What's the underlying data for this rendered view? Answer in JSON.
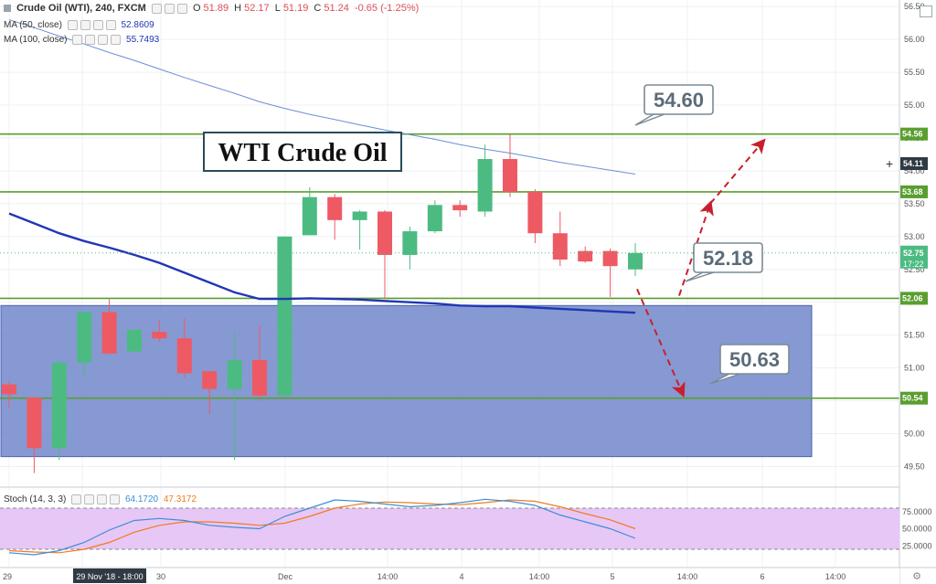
{
  "header": {
    "icon": "square-icon",
    "symbol": "Crude Oil (WTI), 240, FXCM",
    "open_label": "O",
    "open": "51.89",
    "high_label": "H",
    "high": "52.17",
    "low_label": "L",
    "low": "51.19",
    "close_label": "C",
    "close": "51.24",
    "change": "-0.65 (-1.25%)"
  },
  "indicators": {
    "ma50": {
      "label": "MA (50, close)",
      "value": "52.8609",
      "color": "#2136b5"
    },
    "ma100": {
      "label": "MA (100, close)",
      "value": "55.7493",
      "color": "#6b8fd6"
    }
  },
  "stoch_header": {
    "label": "Stoch (14, 3, 3)",
    "k": "64.1720",
    "d": "47.3172",
    "k_color": "#3b8fd6",
    "d_color": "#f07b1f"
  },
  "colors": {
    "up": "#4cbb82",
    "down": "#ee5a63",
    "level": "#5a9e2f",
    "zone": "#6c82c8",
    "arrow": "#c8202b",
    "stoch_bg": "#e7c7f5"
  },
  "chart_data": {
    "type": "candlestick",
    "title": "WTI Crude Oil",
    "ylim": [
      49.2,
      56.6
    ],
    "y_ticks": [
      "56.50",
      "56.00",
      "55.50",
      "55.00",
      "54.50",
      "54.00",
      "53.50",
      "53.00",
      "52.50",
      "52.00",
      "51.50",
      "51.00",
      "50.50",
      "50.00",
      "49.50"
    ],
    "x_ticks": [
      "29",
      "29 Nov '18 - 18:00",
      "30",
      "Dec",
      "14:00",
      "4",
      "14:00",
      "5",
      "14:00",
      "6",
      "14:00"
    ],
    "candles": [
      {
        "o": 50.75,
        "h": 50.8,
        "l": 50.4,
        "c": 50.6
      },
      {
        "o": 50.55,
        "h": 50.55,
        "l": 49.4,
        "c": 49.78
      },
      {
        "o": 49.78,
        "h": 51.1,
        "l": 49.6,
        "c": 51.08
      },
      {
        "o": 51.08,
        "h": 51.85,
        "l": 50.85,
        "c": 51.85
      },
      {
        "o": 51.85,
        "h": 52.05,
        "l": 51.2,
        "c": 51.22
      },
      {
        "o": 51.25,
        "h": 51.6,
        "l": 51.25,
        "c": 51.58
      },
      {
        "o": 51.55,
        "h": 51.72,
        "l": 51.4,
        "c": 51.45
      },
      {
        "o": 51.45,
        "h": 51.75,
        "l": 50.85,
        "c": 50.92
      },
      {
        "o": 50.95,
        "h": 50.95,
        "l": 50.3,
        "c": 50.68
      },
      {
        "o": 50.68,
        "h": 51.55,
        "l": 49.6,
        "c": 51.12
      },
      {
        "o": 51.12,
        "h": 51.65,
        "l": 50.5,
        "c": 50.58
      },
      {
        "o": 50.58,
        "h": 53.0,
        "l": 50.55,
        "c": 53.0
      },
      {
        "o": 53.02,
        "h": 53.75,
        "l": 53.02,
        "c": 53.6
      },
      {
        "o": 53.6,
        "h": 53.65,
        "l": 52.95,
        "c": 53.25
      },
      {
        "o": 53.25,
        "h": 53.4,
        "l": 52.8,
        "c": 53.38
      },
      {
        "o": 53.38,
        "h": 53.4,
        "l": 52.05,
        "c": 52.72
      },
      {
        "o": 52.72,
        "h": 53.15,
        "l": 52.5,
        "c": 53.08
      },
      {
        "o": 53.08,
        "h": 53.55,
        "l": 53.05,
        "c": 53.48
      },
      {
        "o": 53.48,
        "h": 53.55,
        "l": 53.3,
        "c": 53.4
      },
      {
        "o": 53.38,
        "h": 54.4,
        "l": 53.3,
        "c": 54.18
      },
      {
        "o": 54.18,
        "h": 54.55,
        "l": 53.6,
        "c": 53.68
      },
      {
        "o": 53.68,
        "h": 53.72,
        "l": 52.9,
        "c": 53.05
      },
      {
        "o": 53.05,
        "h": 53.38,
        "l": 52.55,
        "c": 52.65
      },
      {
        "o": 52.78,
        "h": 52.85,
        "l": 52.6,
        "c": 52.62
      },
      {
        "o": 52.78,
        "h": 52.82,
        "l": 52.08,
        "c": 52.55
      },
      {
        "o": 52.5,
        "h": 52.9,
        "l": 52.4,
        "c": 52.75
      }
    ],
    "ma50": [
      53.35,
      53.2,
      53.05,
      52.93,
      52.83,
      52.72,
      52.6,
      52.45,
      52.3,
      52.15,
      52.05,
      52.05,
      52.06,
      52.05,
      52.04,
      52.02,
      52.0,
      51.98,
      51.95,
      51.94,
      51.94,
      51.92,
      51.9,
      51.88,
      51.86,
      51.84
    ],
    "ma100": [
      56.3,
      56.18,
      56.05,
      55.93,
      55.8,
      55.68,
      55.55,
      55.42,
      55.3,
      55.18,
      55.05,
      54.95,
      54.86,
      54.78,
      54.7,
      54.62,
      54.55,
      54.48,
      54.4,
      54.33,
      54.27,
      54.2,
      54.13,
      54.07,
      54.01,
      53.95
    ],
    "levels": [
      {
        "value": 54.56,
        "label": "54.56"
      },
      {
        "value": 53.68,
        "label": "53.68"
      },
      {
        "value": 52.06,
        "label": "52.06"
      },
      {
        "value": 50.54,
        "label": "50.54"
      }
    ],
    "current_price": {
      "value": 52.75,
      "label": "52.75",
      "timer": "17:22"
    },
    "crosshair_price": {
      "value": 54.11,
      "label": "54.11"
    },
    "callouts": [
      "54.60",
      "52.18",
      "50.63"
    ],
    "zone": {
      "top": 51.95,
      "bottom": 49.65
    },
    "stochastic": {
      "ticks": [
        "75.0000",
        "50.0000",
        "25.0000"
      ],
      "upper": 80,
      "lower": 20,
      "k": [
        15,
        12,
        18,
        30,
        48,
        62,
        65,
        62,
        55,
        52,
        50,
        68,
        80,
        92,
        90,
        86,
        82,
        84,
        88,
        93,
        90,
        84,
        70,
        60,
        50,
        36
      ],
      "d": [
        18,
        16,
        15,
        20,
        30,
        45,
        55,
        60,
        60,
        58,
        55,
        58,
        68,
        80,
        86,
        89,
        88,
        86,
        85,
        88,
        92,
        90,
        82,
        72,
        63,
        50
      ]
    }
  }
}
